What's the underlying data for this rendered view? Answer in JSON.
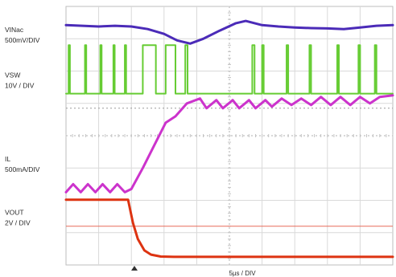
{
  "chart_data": {
    "type": "line",
    "title": "",
    "xlabel": "5µs / DIV",
    "ylabel": "",
    "grid": true,
    "grid_divisions": {
      "x": 10,
      "y": 8
    },
    "trigger_marker": "triangle at ~1.9 div",
    "x_units": "div",
    "y_units": "div",
    "xlim": [
      0,
      10
    ],
    "ylim": [
      0,
      8
    ],
    "channel_labels": [
      {
        "name": "VINac",
        "scale": "500mV/DIV",
        "y_pos": 7.2
      },
      {
        "name": "VSW",
        "scale": "10V / DIV",
        "y_pos": 5.8
      },
      {
        "name": "IL",
        "scale": "500mA/DIV",
        "y_pos": 3.2
      },
      {
        "name": "VOUT",
        "scale": "2V / DIV",
        "y_pos": 1.55
      }
    ],
    "reference_lines": [
      {
        "name": "VOUT reference",
        "y": 1.2,
        "color": "#e86a5a"
      },
      {
        "name": "dotted reference",
        "y": 4.85,
        "color": "#9a9a9a"
      }
    ],
    "series": [
      {
        "name": "VINac",
        "color": "#4b2bb8",
        "style": "line",
        "x": [
          0,
          0.5,
          1.0,
          1.5,
          2.0,
          2.5,
          3.0,
          3.4,
          3.8,
          4.2,
          4.7,
          5.2,
          5.5,
          6.0,
          6.5,
          7.0,
          7.5,
          8.0,
          8.5,
          9.0,
          9.5,
          10.0
        ],
        "y": [
          7.42,
          7.4,
          7.38,
          7.4,
          7.38,
          7.3,
          7.15,
          6.95,
          6.85,
          7.0,
          7.25,
          7.48,
          7.55,
          7.42,
          7.38,
          7.35,
          7.33,
          7.32,
          7.3,
          7.35,
          7.4,
          7.42
        ]
      },
      {
        "name": "VSW",
        "color": "#66cc33",
        "style": "pwm",
        "high": 6.8,
        "low": 5.3,
        "high_intervals": [
          [
            0.08,
            0.12
          ],
          [
            0.58,
            0.62
          ],
          [
            1.05,
            1.09
          ],
          [
            1.45,
            1.49
          ],
          [
            1.8,
            1.84
          ],
          [
            2.35,
            2.75
          ],
          [
            3.05,
            3.35
          ],
          [
            3.65,
            3.72
          ],
          [
            5.7,
            5.77
          ],
          [
            6.0,
            6.05
          ],
          [
            6.75,
            6.8
          ],
          [
            7.45,
            7.5
          ],
          [
            8.3,
            8.35
          ],
          [
            8.95,
            9.0
          ],
          [
            9.45,
            9.5
          ]
        ]
      },
      {
        "name": "IL",
        "color": "#cc33cc",
        "style": "line",
        "x": [
          0,
          0.22,
          0.45,
          0.67,
          0.9,
          1.12,
          1.35,
          1.57,
          1.8,
          2.0,
          2.35,
          2.7,
          3.05,
          3.35,
          3.7,
          4.1,
          4.3,
          4.6,
          4.8,
          5.1,
          5.3,
          5.6,
          5.8,
          6.1,
          6.3,
          6.6,
          6.9,
          7.2,
          7.5,
          7.8,
          8.1,
          8.4,
          8.7,
          9.0,
          9.3,
          9.6,
          10.0
        ],
        "y": [
          2.25,
          2.5,
          2.25,
          2.5,
          2.25,
          2.5,
          2.25,
          2.5,
          2.25,
          2.35,
          3.0,
          3.7,
          4.4,
          4.6,
          5.0,
          5.15,
          4.85,
          5.1,
          4.85,
          5.1,
          4.85,
          5.1,
          4.85,
          5.1,
          4.9,
          5.15,
          4.95,
          5.15,
          4.95,
          5.2,
          4.95,
          5.2,
          4.95,
          5.2,
          5.0,
          5.2,
          5.25
        ]
      },
      {
        "name": "VOUT",
        "color": "#dd3311",
        "style": "line",
        "x": [
          0,
          1.9,
          2.05,
          2.2,
          2.4,
          2.6,
          2.9,
          3.3,
          4,
          5,
          6,
          7,
          8,
          9,
          10
        ],
        "y": [
          2.02,
          2.02,
          1.3,
          0.8,
          0.45,
          0.32,
          0.26,
          0.25,
          0.25,
          0.25,
          0.25,
          0.25,
          0.25,
          0.25,
          0.25
        ]
      }
    ]
  }
}
